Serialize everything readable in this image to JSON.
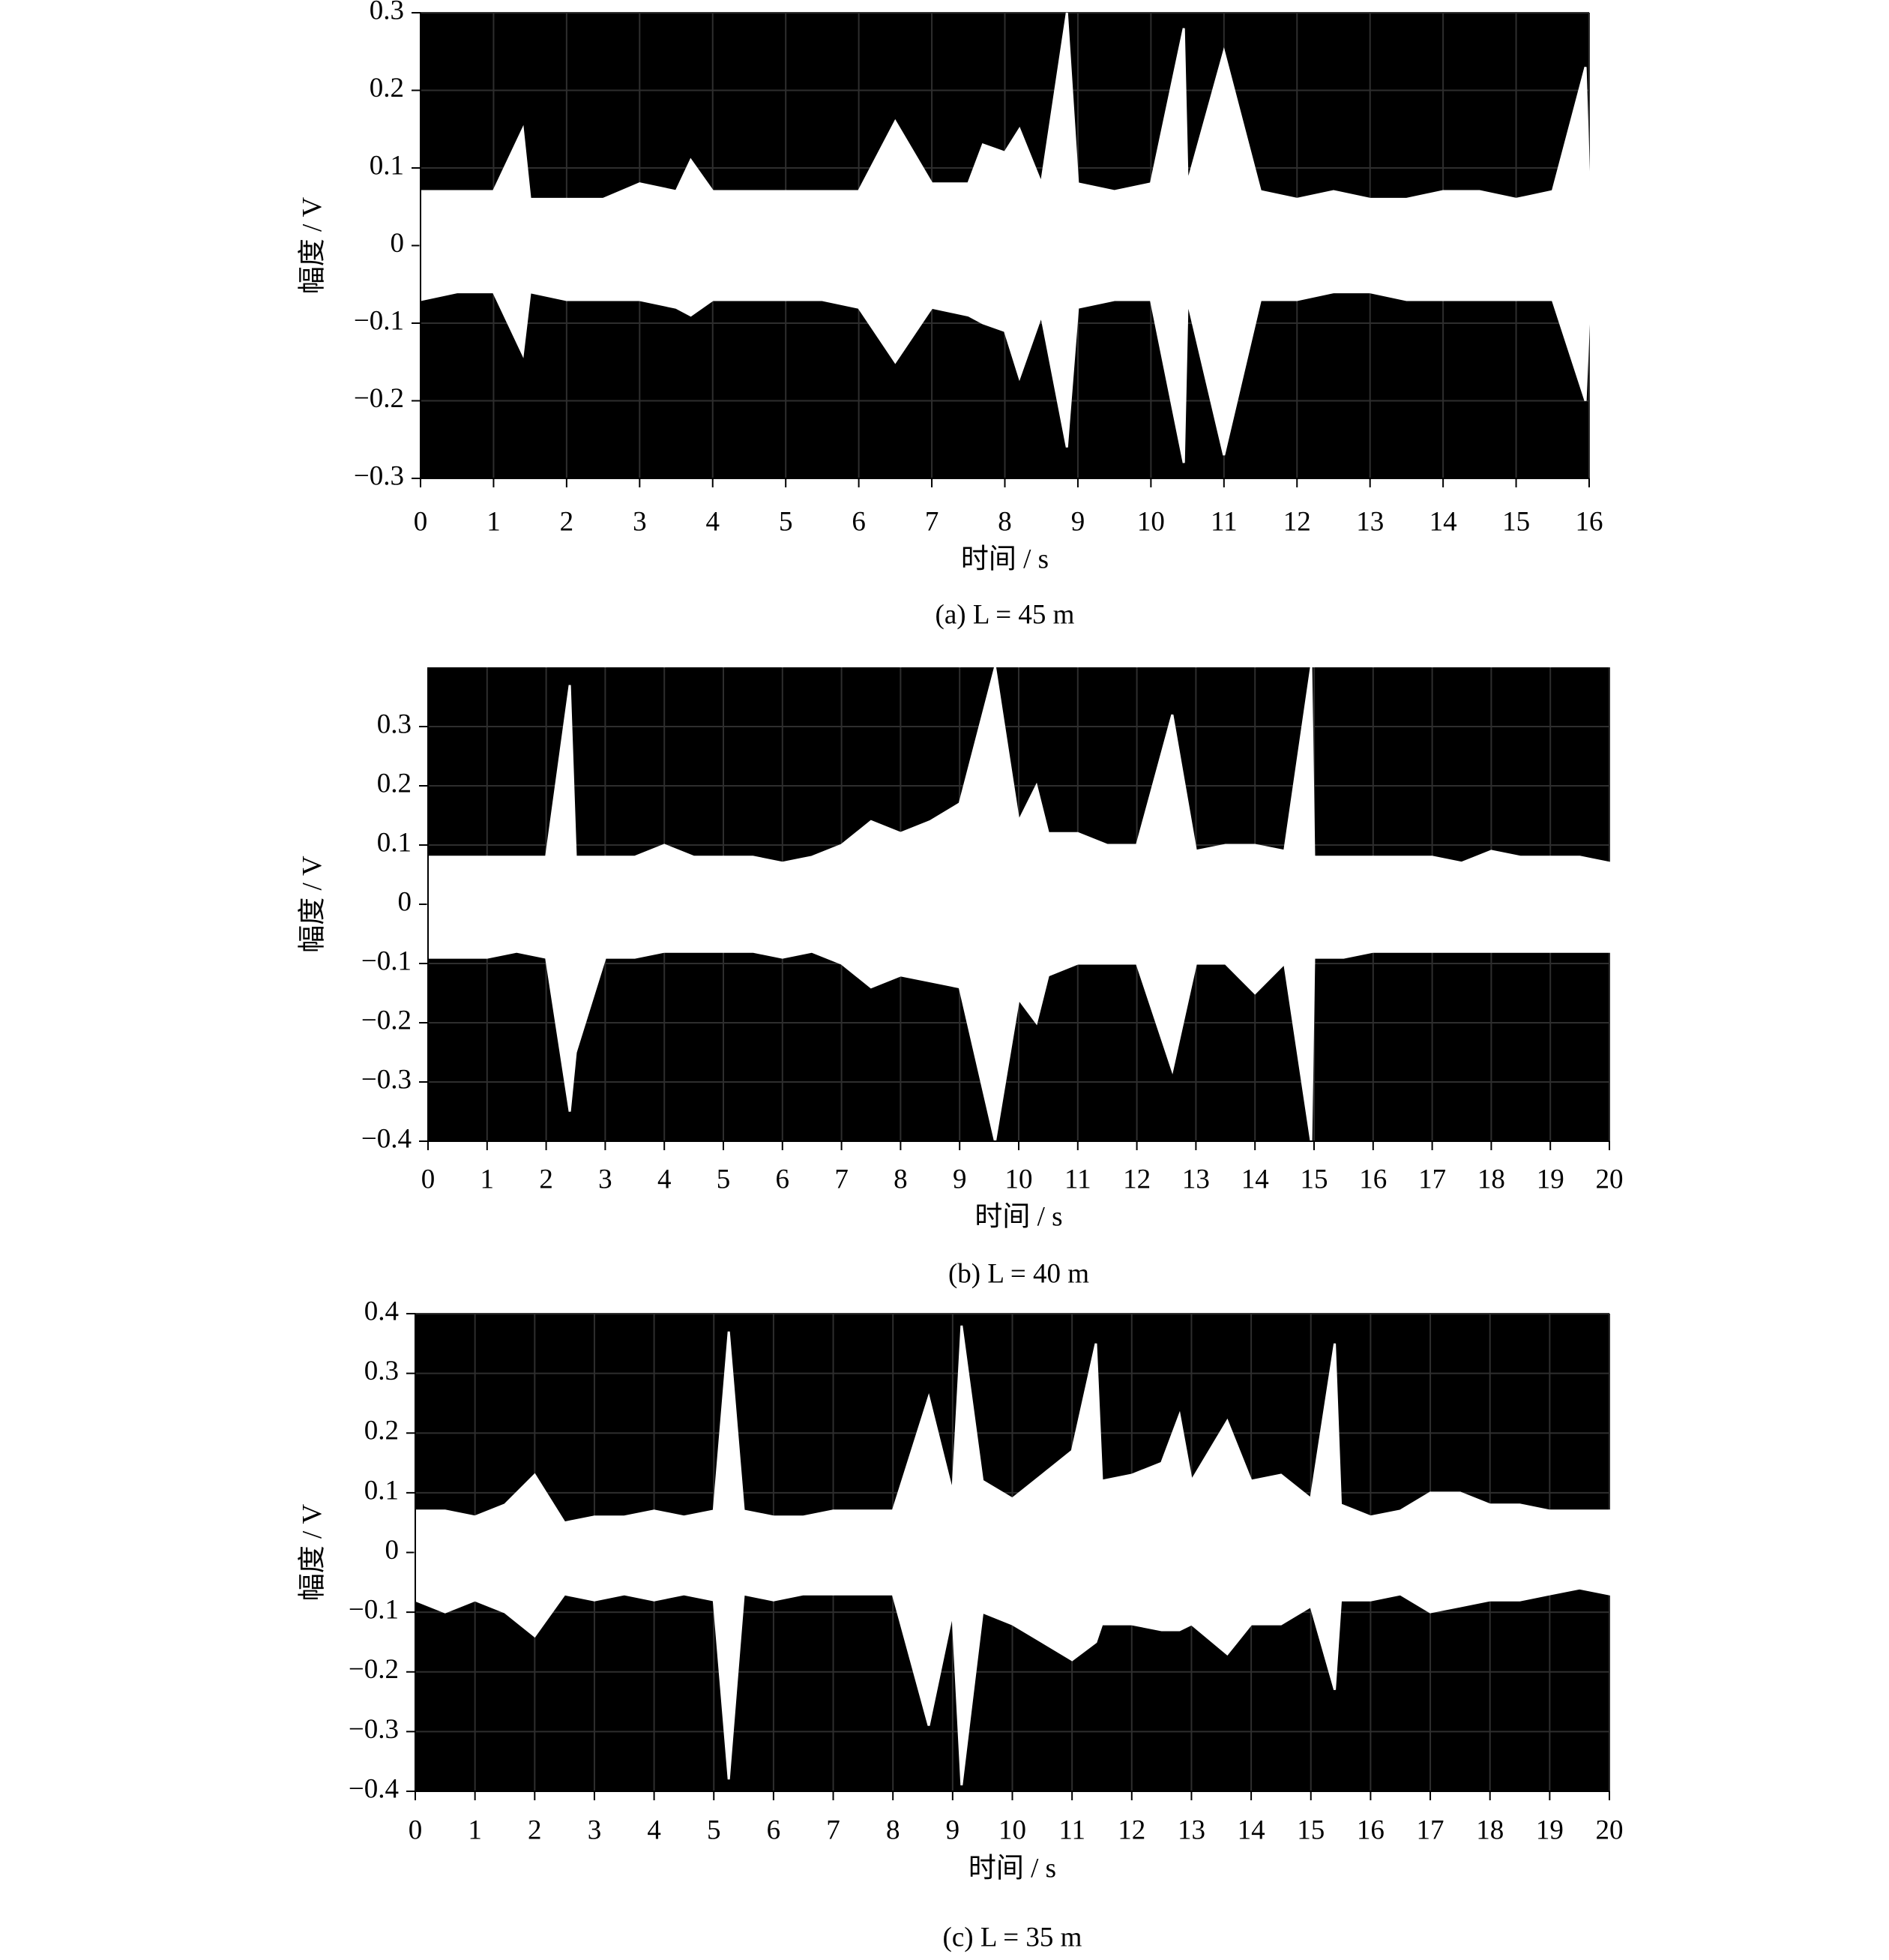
{
  "chart_data": [
    {
      "type": "area",
      "caption": "(a)  L = 45 m",
      "xlabel": "时间 / s",
      "ylabel": "幅度 / V",
      "background": "#000000",
      "grid": true,
      "x": [
        0,
        0.5,
        1,
        1.4,
        1.5,
        2,
        2.5,
        3,
        3.5,
        3.7,
        4,
        4.5,
        5,
        5.5,
        6,
        6.5,
        7,
        7.5,
        7.7,
        8,
        8.2,
        8.5,
        8.85,
        9,
        9.5,
        10,
        10.45,
        10.5,
        11,
        11.5,
        12,
        12.5,
        13,
        13.5,
        14,
        14.5,
        15,
        15.5,
        15.95,
        16
      ],
      "series": [
        {
          "color": "#ffffff",
          "values": [
            0.07,
            0.07,
            0.07,
            0.15,
            0.06,
            0.06,
            0.06,
            0.08,
            0.07,
            0.11,
            0.07,
            0.07,
            0.07,
            0.07,
            0.07,
            0.16,
            0.08,
            0.08,
            0.13,
            0.12,
            0.15,
            0.08,
            0.3,
            0.08,
            0.07,
            0.08,
            0.28,
            0.08,
            0.25,
            0.07,
            0.06,
            0.07,
            0.06,
            0.06,
            0.07,
            0.07,
            0.06,
            0.07,
            0.23,
            0.08
          ]
        },
        {
          "color": "#ffffff",
          "values": [
            -0.07,
            -0.06,
            -0.06,
            -0.14,
            -0.06,
            -0.07,
            -0.07,
            -0.07,
            -0.08,
            -0.09,
            -0.07,
            -0.07,
            -0.07,
            -0.07,
            -0.08,
            -0.15,
            -0.08,
            -0.09,
            -0.1,
            -0.11,
            -0.17,
            -0.09,
            -0.26,
            -0.08,
            -0.07,
            -0.07,
            -0.28,
            -0.07,
            -0.27,
            -0.07,
            -0.07,
            -0.06,
            -0.06,
            -0.07,
            -0.07,
            -0.07,
            -0.07,
            -0.07,
            -0.2,
            -0.09
          ]
        }
      ],
      "xlim": [
        0,
        16
      ],
      "xticks": [
        0,
        1,
        2,
        3,
        4,
        5,
        6,
        7,
        8,
        9,
        10,
        11,
        12,
        13,
        14,
        15,
        16
      ],
      "ylim": [
        -0.3,
        0.3
      ],
      "yticks": [
        {
          "value": -0.3,
          "label": "−0.3"
        },
        {
          "value": -0.2,
          "label": "−0.2"
        },
        {
          "value": -0.1,
          "label": "−0.1"
        },
        0,
        0.1,
        0.2,
        0.3
      ]
    },
    {
      "type": "area",
      "caption": "(b)  L = 40 m",
      "xlabel": "时间 / s",
      "ylabel": "幅度 / V",
      "background": "#000000",
      "grid": true,
      "x": [
        0,
        0.5,
        1,
        1.5,
        2,
        2.4,
        2.5,
        3,
        3.5,
        4,
        4.5,
        5,
        5.5,
        6,
        6.5,
        7,
        7.5,
        8,
        8.5,
        9,
        9.6,
        10,
        10.3,
        10.5,
        11,
        11.5,
        12,
        12.6,
        13,
        13.5,
        14,
        14.5,
        14.95,
        15,
        15.5,
        16,
        16.5,
        17,
        17.5,
        18,
        18.5,
        19,
        19.5,
        20
      ],
      "series": [
        {
          "color": "#ffffff",
          "values": [
            0.08,
            0.08,
            0.08,
            0.08,
            0.08,
            0.37,
            0.08,
            0.08,
            0.08,
            0.1,
            0.08,
            0.08,
            0.08,
            0.07,
            0.08,
            0.1,
            0.14,
            0.12,
            0.14,
            0.17,
            0.4,
            0.14,
            0.2,
            0.12,
            0.12,
            0.1,
            0.1,
            0.32,
            0.09,
            0.1,
            0.1,
            0.09,
            0.4,
            0.08,
            0.08,
            0.08,
            0.08,
            0.08,
            0.07,
            0.09,
            0.08,
            0.08,
            0.08,
            0.07
          ]
        },
        {
          "color": "#ffffff",
          "values": [
            -0.09,
            -0.09,
            -0.09,
            -0.08,
            -0.09,
            -0.35,
            -0.25,
            -0.09,
            -0.09,
            -0.08,
            -0.08,
            -0.08,
            -0.08,
            -0.09,
            -0.08,
            -0.1,
            -0.14,
            -0.12,
            -0.13,
            -0.14,
            -0.4,
            -0.16,
            -0.2,
            -0.12,
            -0.1,
            -0.1,
            -0.1,
            -0.28,
            -0.1,
            -0.1,
            -0.15,
            -0.1,
            -0.4,
            -0.09,
            -0.09,
            -0.08,
            -0.08,
            -0.08,
            -0.08,
            -0.08,
            -0.08,
            -0.08,
            -0.08,
            -0.08
          ]
        }
      ],
      "xlim": [
        0,
        20
      ],
      "xticks": [
        0,
        1,
        2,
        3,
        4,
        5,
        6,
        7,
        8,
        9,
        10,
        11,
        12,
        13,
        14,
        15,
        16,
        17,
        18,
        19,
        20
      ],
      "ylim": [
        -0.4,
        0.4
      ],
      "yticks": [
        {
          "value": -0.4,
          "label": "−0.4"
        },
        {
          "value": -0.3,
          "label": "−0.3"
        },
        {
          "value": -0.2,
          "label": "−0.2"
        },
        {
          "value": -0.1,
          "label": "−0.1"
        },
        0,
        0.1,
        0.2,
        0.3
      ]
    },
    {
      "type": "area",
      "caption": "(c)  L = 35 m",
      "xlabel": "时间 / s",
      "ylabel": "幅度 / V",
      "background": "#000000",
      "grid": true,
      "x": [
        0,
        0.5,
        1,
        1.5,
        2,
        2.5,
        3,
        3.5,
        4,
        4.5,
        5,
        5.25,
        5.5,
        6,
        6.5,
        7,
        7.5,
        8,
        8.6,
        9,
        9.15,
        9.5,
        10,
        10.5,
        11,
        11.4,
        11.5,
        12,
        12.5,
        12.8,
        13,
        13.6,
        14,
        14.5,
        15,
        15.4,
        15.5,
        16,
        16.5,
        17,
        17.5,
        18,
        18.5,
        19,
        19.5,
        20
      ],
      "series": [
        {
          "color": "#ffffff",
          "values": [
            0.07,
            0.07,
            0.06,
            0.08,
            0.13,
            0.05,
            0.06,
            0.06,
            0.07,
            0.06,
            0.07,
            0.37,
            0.07,
            0.06,
            0.06,
            0.07,
            0.07,
            0.07,
            0.26,
            0.1,
            0.38,
            0.12,
            0.09,
            0.13,
            0.17,
            0.35,
            0.12,
            0.13,
            0.15,
            0.23,
            0.12,
            0.22,
            0.12,
            0.13,
            0.09,
            0.35,
            0.08,
            0.06,
            0.07,
            0.1,
            0.1,
            0.08,
            0.08,
            0.07,
            0.07,
            0.07
          ]
        },
        {
          "color": "#ffffff",
          "values": [
            -0.08,
            -0.1,
            -0.08,
            -0.1,
            -0.14,
            -0.07,
            -0.08,
            -0.07,
            -0.08,
            -0.07,
            -0.08,
            -0.38,
            -0.07,
            -0.08,
            -0.07,
            -0.07,
            -0.07,
            -0.07,
            -0.29,
            -0.1,
            -0.39,
            -0.1,
            -0.12,
            -0.15,
            -0.18,
            -0.15,
            -0.12,
            -0.12,
            -0.13,
            -0.13,
            -0.12,
            -0.17,
            -0.12,
            -0.12,
            -0.09,
            -0.23,
            -0.08,
            -0.08,
            -0.07,
            -0.1,
            -0.09,
            -0.08,
            -0.08,
            -0.07,
            -0.06,
            -0.07
          ]
        }
      ],
      "xlim": [
        0,
        20
      ],
      "xticks": [
        0,
        1,
        2,
        3,
        4,
        5,
        6,
        7,
        8,
        9,
        10,
        11,
        12,
        13,
        14,
        15,
        16,
        17,
        18,
        19,
        20
      ],
      "ylim": [
        -0.4,
        0.4
      ],
      "yticks": [
        {
          "value": -0.4,
          "label": "−0.4"
        },
        {
          "value": -0.3,
          "label": "−0.3"
        },
        {
          "value": -0.2,
          "label": "−0.2"
        },
        {
          "value": -0.1,
          "label": "−0.1"
        },
        0,
        0.1,
        0.2,
        0.3,
        0.4
      ]
    }
  ]
}
